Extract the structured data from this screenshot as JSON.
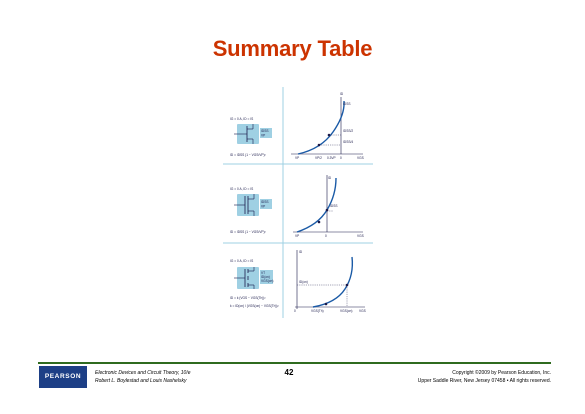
{
  "slide": {
    "title": "Summary Table",
    "page_number": "42"
  },
  "figure": {
    "accent_color": "#9fd0e3",
    "curve_color": "#1a5aa6",
    "rows": [
      {
        "device_label": "JFET",
        "conditions": "IG = 0 A, ID = IS",
        "symbol_labels": [
          "D",
          "G",
          "S"
        ],
        "params": [
          "IDSS",
          "VP"
        ],
        "equation": "ID = IDSS (1 − VGS/VP)²",
        "axis_y": "ID",
        "axis_x": "VGS",
        "marks": [
          "IDSS",
          "IDSS/2",
          "IDSS/4",
          "VP",
          "VP/2",
          "0.3VP",
          "0"
        ]
      },
      {
        "device_label": "Depletion MOSFET",
        "conditions": "IG = 0 A, ID = IS",
        "symbol_labels": [
          "D",
          "G",
          "S"
        ],
        "params": [
          "IDSS",
          "VP"
        ],
        "equation": "ID = IDSS (1 − VGS/VP)²",
        "axis_y": "ID",
        "axis_x": "VGS",
        "marks": [
          "ID",
          "IDSS",
          "VP",
          "0",
          "VGS"
        ]
      },
      {
        "device_label": "Enhancement MOSFET",
        "conditions": "IG = 0 A, ID = IS",
        "symbol_labels": [
          "D",
          "G",
          "S"
        ],
        "params": [
          "VT",
          "ID(on)",
          "VGS(on)"
        ],
        "equation": "ID = k (VGS − VGS(Th))²",
        "equation_2": "k = ID(on) / (VGS(on) − VGS(Th))²",
        "axis_y": "ID",
        "axis_x": "VGS",
        "marks": [
          "ID(on)",
          "VGS(Th)",
          "VGS(on)",
          "0"
        ]
      }
    ]
  },
  "footer": {
    "publisher_logo": "PEARSON",
    "book_title": "Electronic Devices and Circuit Theory, 10/e",
    "book_authors": "Robert L. Boylestad and Louis Nashelsky",
    "copyright_line1": "Copyright ©2009 by Pearson Education, Inc.",
    "copyright_line2": "Upper Saddle River, New Jersey 07458 • All rights reserved."
  }
}
